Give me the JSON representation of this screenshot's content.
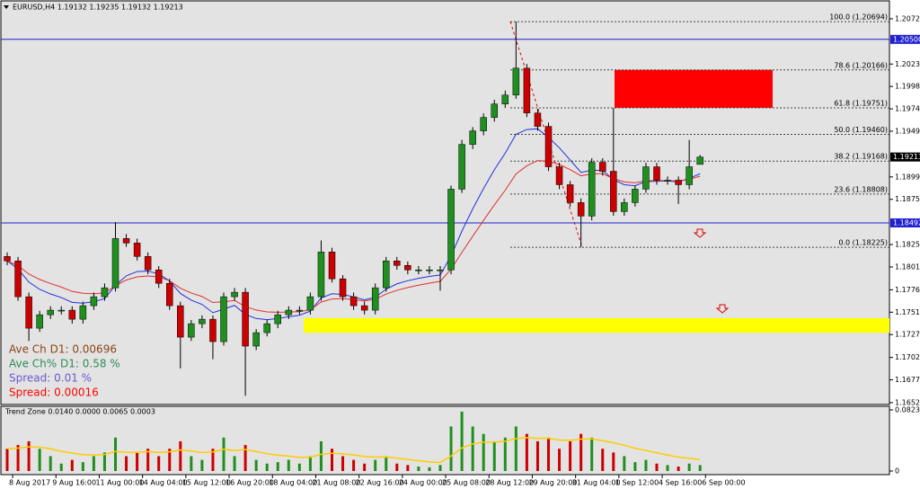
{
  "chart_data": [
    {
      "type": "candlestick",
      "title": "EURUSD,H4  1.19132 1.19235 1.19132 1.19213",
      "x_labels": [
        "8 Aug 2017",
        "9 Aug 16:00",
        "11 Aug 00:00",
        "14 Aug 04:00",
        "15 Aug 12:00",
        "16 Aug 20:00",
        "18 Aug 04:00",
        "21 Aug 08:00",
        "22 Aug 16:00",
        "24 Aug 00:00",
        "25 Aug 08:00",
        "28 Aug 12:00",
        "29 Aug 20:00",
        "31 Aug 04:00",
        "1 Sep 12:00",
        "4 Sep 16:00",
        "6 Sep 00:00"
      ],
      "open": [
        1.18125,
        1.18076,
        1.17684,
        1.1734,
        1.17487,
        1.17537,
        1.17537,
        1.17438,
        1.17586,
        1.17684,
        1.17782,
        1.18321,
        1.18272,
        1.18125,
        1.17978,
        1.17831,
        1.17586,
        1.17242,
        1.17389,
        1.17438,
        1.17193,
        1.17684,
        1.17733,
        1.17144,
        1.17291,
        1.17389,
        1.17487,
        1.17537,
        1.17537,
        1.17684,
        1.18174,
        1.1788,
        1.17684,
        1.17586,
        1.17537,
        1.17782,
        1.18076,
        1.18027,
        1.17978,
        1.17978,
        1.17978,
        1.17978,
        1.18861,
        1.19351,
        1.19499,
        1.19646,
        1.19793,
        1.19891,
        1.20185,
        1.19695,
        1.19548,
        1.19106,
        1.1891,
        1.18714,
        1.18567,
        1.19155,
        1.19057,
        1.18616,
        1.18714,
        1.18861,
        1.19106,
        1.18959,
        1.18959,
        1.1891,
        1.19132
      ],
      "high": [
        1.1817,
        1.1812,
        1.1773,
        1.1753,
        1.1758,
        1.1758,
        1.1758,
        1.1763,
        1.1773,
        1.1783,
        1.185,
        1.1837,
        1.1832,
        1.1817,
        1.1802,
        1.1788,
        1.1763,
        1.1743,
        1.1748,
        1.1748,
        1.1773,
        1.1778,
        1.1778,
        1.1733,
        1.1743,
        1.1753,
        1.1758,
        1.1758,
        1.1773,
        1.183,
        1.1822,
        1.1792,
        1.1773,
        1.1763,
        1.1783,
        1.1812,
        1.1812,
        1.1807,
        1.1802,
        1.1802,
        1.1802,
        1.189,
        1.194,
        1.1954,
        1.1969,
        1.1984,
        1.1994,
        1.20694,
        1.2023,
        1.1974,
        1.1959,
        1.1915,
        1.1895,
        1.1876,
        1.192,
        1.192,
        1.1975,
        1.1876,
        1.189,
        1.1915,
        1.1915,
        1.19,
        1.19,
        1.194,
        1.19235
      ],
      "low": [
        1.1803,
        1.1764,
        1.172,
        1.173,
        1.1744,
        1.1749,
        1.1739,
        1.1739,
        1.1754,
        1.1764,
        1.1774,
        1.1823,
        1.1808,
        1.1793,
        1.1778,
        1.1754,
        1.169,
        1.172,
        1.1734,
        1.17,
        1.1715,
        1.1764,
        1.166,
        1.171,
        1.1725,
        1.1734,
        1.1744,
        1.1749,
        1.1749,
        1.1764,
        1.1784,
        1.1764,
        1.1754,
        1.1749,
        1.1749,
        1.1774,
        1.1798,
        1.1793,
        1.1793,
        1.1793,
        1.1775,
        1.1793,
        1.1882,
        1.193,
        1.1945,
        1.196,
        1.1975,
        1.1985,
        1.1965,
        1.195,
        1.1906,
        1.1886,
        1.1867,
        1.18225,
        1.1852,
        1.1901,
        1.1857,
        1.1857,
        1.1867,
        1.1882,
        1.1891,
        1.1891,
        1.187,
        1.1886,
        1.19132
      ],
      "close": [
        1.18076,
        1.17684,
        1.1734,
        1.17487,
        1.17537,
        1.17537,
        1.17438,
        1.17586,
        1.17684,
        1.17782,
        1.18321,
        1.18272,
        1.18125,
        1.17978,
        1.17831,
        1.17586,
        1.17242,
        1.17389,
        1.17438,
        1.17193,
        1.17684,
        1.17733,
        1.17144,
        1.17291,
        1.17389,
        1.17487,
        1.17537,
        1.17537,
        1.17684,
        1.18174,
        1.1788,
        1.17684,
        1.17586,
        1.17537,
        1.17782,
        1.18076,
        1.18027,
        1.17978,
        1.17978,
        1.17978,
        1.17978,
        1.18861,
        1.19351,
        1.19499,
        1.19646,
        1.19793,
        1.19891,
        1.20185,
        1.19695,
        1.19548,
        1.19106,
        1.1891,
        1.18714,
        1.18567,
        1.19155,
        1.19057,
        1.18616,
        1.18714,
        1.18861,
        1.19106,
        1.18959,
        1.18959,
        1.1891,
        1.19106,
        1.19213
      ],
      "up_color": "#1f8f1f",
      "down_color": "#cc0000",
      "ylim": [
        1.16505,
        1.20921
      ],
      "yticks": [
        {
          "value": 1.20725,
          "label": "1.20725"
        },
        {
          "value": 1.2023,
          "label": "1.20230"
        },
        {
          "value": 1.19985,
          "label": "1.19985"
        },
        {
          "value": 1.1974,
          "label": "1.19740"
        },
        {
          "value": 1.19495,
          "label": "1.19495"
        },
        {
          "value": 1.18995,
          "label": "1.18995"
        },
        {
          "value": 1.1875,
          "label": "1.18750"
        },
        {
          "value": 1.18255,
          "label": "1.18255"
        },
        {
          "value": 1.1801,
          "label": "1.18010"
        },
        {
          "value": 1.1776,
          "label": "1.17760"
        },
        {
          "value": 1.17515,
          "label": "1.17515"
        },
        {
          "value": 1.1727,
          "label": "1.17270"
        },
        {
          "value": 1.1702,
          "label": "1.17020"
        },
        {
          "value": 1.16775,
          "label": "1.16775"
        },
        {
          "value": 1.16525,
          "label": "1.16525"
        }
      ],
      "levels": [
        {
          "value": 1.205,
          "label": "1.20500"
        },
        {
          "value": 1.18492,
          "label": "1.18492"
        }
      ],
      "level_color": "#2020d0",
      "current": {
        "value": 1.19213,
        "label": "1.19213"
      },
      "fib": [
        {
          "value": 1.20694,
          "label": "100.0 (1.20694)"
        },
        {
          "value": 1.20166,
          "label": "78.6 (1.20166)"
        },
        {
          "value": 1.19751,
          "label": "61.8 (1.19751)"
        },
        {
          "value": 1.1946,
          "label": "50.0 (1.19460)"
        },
        {
          "value": 1.19168,
          "label": "38.2 (1.19168)"
        },
        {
          "value": 1.18808,
          "label": "23.6 (1.18808)"
        },
        {
          "value": 1.18225,
          "label": "0.0 (1.18225)"
        }
      ],
      "zones": [
        {
          "top": 1.20166,
          "bottom": 1.19751,
          "color": "#ff0000"
        },
        {
          "top": 1.1745,
          "bottom": 1.1729,
          "color": "#ffff00"
        }
      ],
      "info": [
        {
          "text": "Ave Ch D1: 0.00696",
          "color": "#8b4513"
        },
        {
          "text": "Ave Ch% D1: 0.58 %",
          "color": "#2e8b57"
        },
        {
          "text": "Spread: 0.01 %",
          "color": "#6a5acd"
        },
        {
          "text": "Spread: 0.00016",
          "color": "#ff0000"
        }
      ]
    },
    {
      "type": "bar",
      "title": "Trend Zone 0.0140 0.0000 0.0065 0.0003",
      "values": [
        0.03,
        0.035,
        0.04,
        0.03,
        0.02,
        0.01,
        0.015,
        0.012,
        0.02,
        0.025,
        0.045,
        0.02,
        0.025,
        0.03,
        0.02,
        0.03,
        0.04,
        0.02,
        0.015,
        0.03,
        0.045,
        0.02,
        0.035,
        0.015,
        0.01,
        0.012,
        0.015,
        0.01,
        0.02,
        0.04,
        0.03,
        0.02,
        0.015,
        0.01,
        0.015,
        0.02,
        0.01,
        0.008,
        0.006,
        0.005,
        0.008,
        0.06,
        0.08,
        0.06,
        0.05,
        0.04,
        0.045,
        0.06,
        0.05,
        0.04,
        0.045,
        0.03,
        0.04,
        0.05,
        0.045,
        0.03,
        0.025,
        0.02,
        0.012,
        0.015,
        0.01,
        0.008,
        0.006,
        0.01,
        0.008
      ],
      "ylim": [
        0,
        0.0823
      ],
      "yticks": [
        0.0823,
        0
      ],
      "line_color": "#ffcc00"
    }
  ]
}
